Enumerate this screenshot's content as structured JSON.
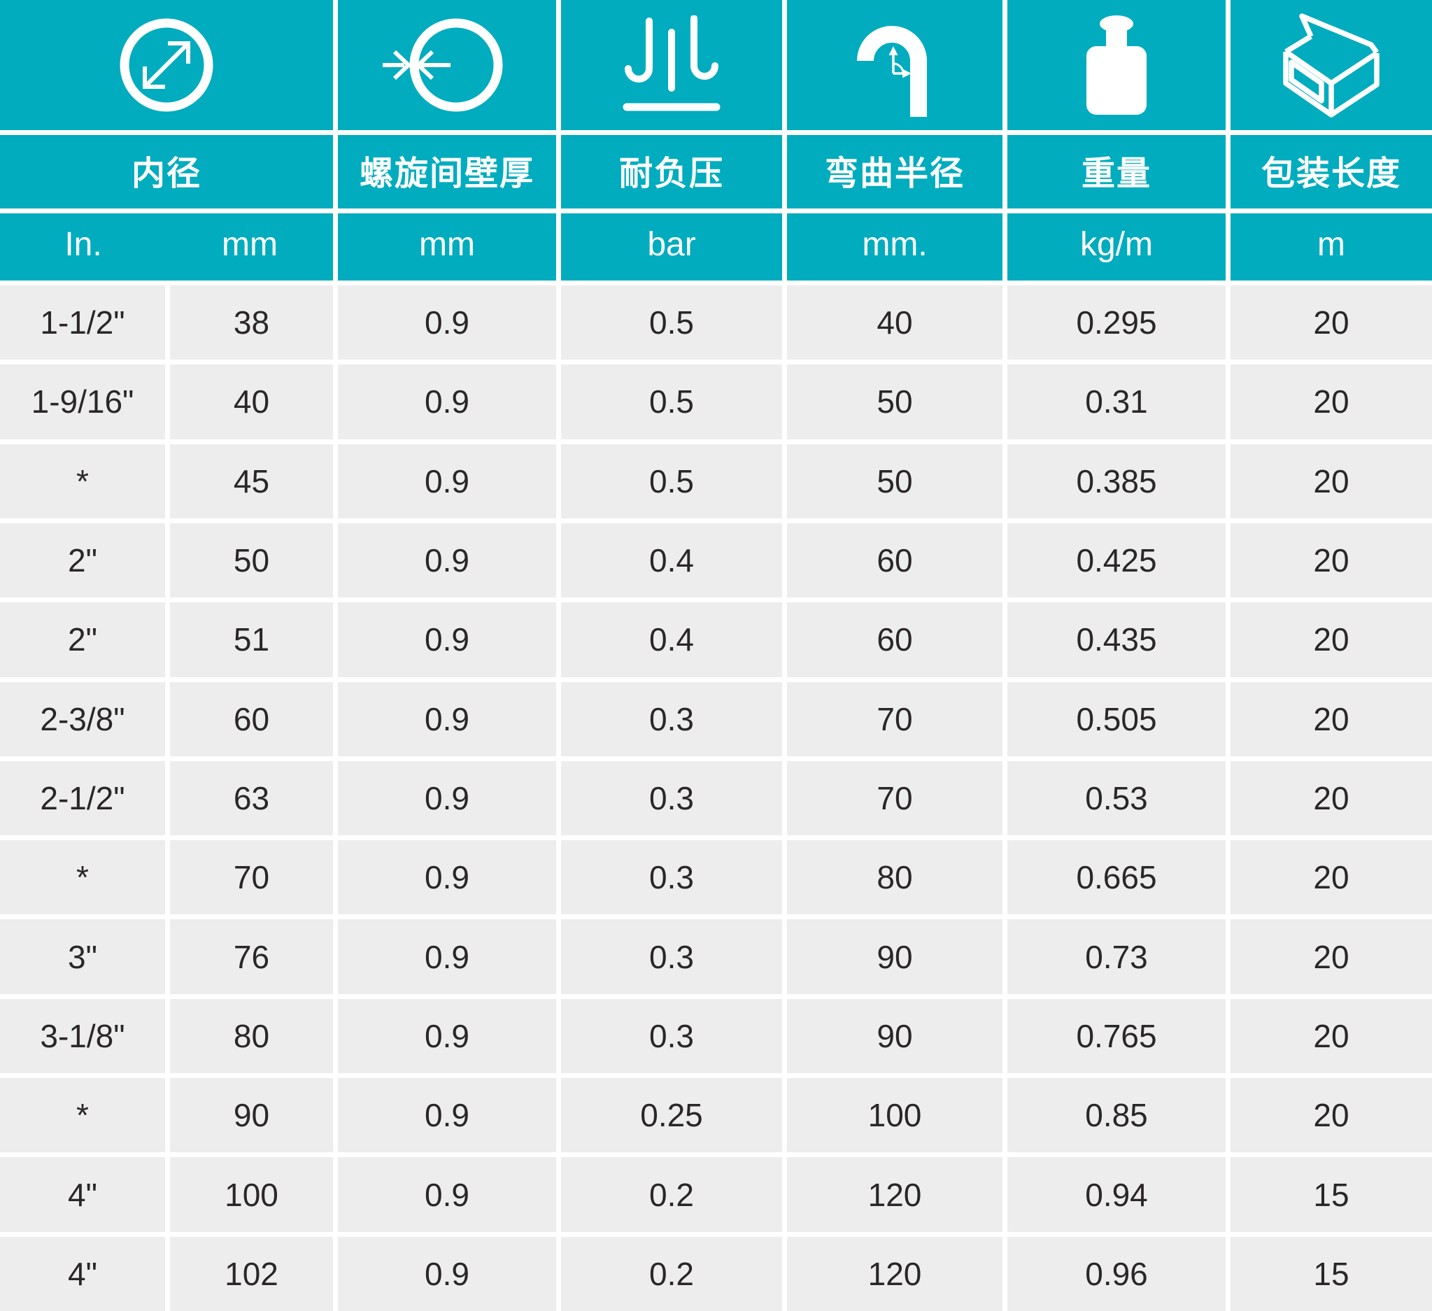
{
  "table": {
    "colors": {
      "teal": "#00ACBE",
      "row_bg": "#EDEDED",
      "text_dark": "#2B2728",
      "divider": "#FFFFFF",
      "icon_color": "#FFFFFF"
    },
    "columns": [
      {
        "id": "inner-diameter",
        "label": "内径",
        "icon": "diameter-icon",
        "units": [
          "In.",
          "mm"
        ]
      },
      {
        "id": "wall-thickness",
        "label": "螺旋间壁厚",
        "icon": "wall-thickness-icon",
        "units": [
          "mm"
        ]
      },
      {
        "id": "vacuum-rating",
        "label": "耐负压",
        "icon": "vacuum-icon",
        "units": [
          "bar"
        ]
      },
      {
        "id": "bend-radius",
        "label": "弯曲半径",
        "icon": "bend-radius-icon",
        "units": [
          "mm."
        ]
      },
      {
        "id": "weight",
        "label": "重量",
        "icon": "weight-icon",
        "units": [
          "kg/m"
        ]
      },
      {
        "id": "package-length",
        "label": "包装长度",
        "icon": "package-box-icon",
        "units": [
          "m"
        ]
      }
    ],
    "rows": [
      [
        "1-1/2\"",
        "38",
        "0.9",
        "0.5",
        "40",
        "0.295",
        "20"
      ],
      [
        "1-9/16\"",
        "40",
        "0.9",
        "0.5",
        "50",
        "0.31",
        "20"
      ],
      [
        "*",
        "45",
        "0.9",
        "0.5",
        "50",
        "0.385",
        "20"
      ],
      [
        "2\"",
        "50",
        "0.9",
        "0.4",
        "60",
        "0.425",
        "20"
      ],
      [
        "2\"",
        "51",
        "0.9",
        "0.4",
        "60",
        "0.435",
        "20"
      ],
      [
        "2-3/8\"",
        "60",
        "0.9",
        "0.3",
        "70",
        "0.505",
        "20"
      ],
      [
        "2-1/2\"",
        "63",
        "0.9",
        "0.3",
        "70",
        "0.53",
        "20"
      ],
      [
        "*",
        "70",
        "0.9",
        "0.3",
        "80",
        "0.665",
        "20"
      ],
      [
        "3\"",
        "76",
        "0.9",
        "0.3",
        "90",
        "0.73",
        "20"
      ],
      [
        "3-1/8\"",
        "80",
        "0.9",
        "0.3",
        "90",
        "0.765",
        "20"
      ],
      [
        "*",
        "90",
        "0.9",
        "0.25",
        "100",
        "0.85",
        "20"
      ],
      [
        "4\"",
        "100",
        "0.9",
        "0.2",
        "120",
        "0.94",
        "15"
      ],
      [
        "4\"",
        "102",
        "0.9",
        "0.2",
        "120",
        "0.96",
        "15"
      ]
    ]
  }
}
